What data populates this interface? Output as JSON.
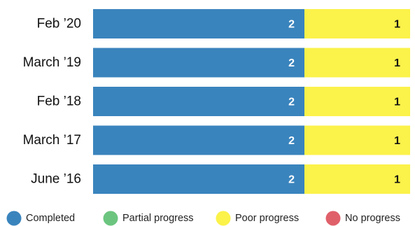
{
  "chart_data": {
    "type": "bar",
    "orientation": "horizontal",
    "stacked": true,
    "normalized": true,
    "categories": [
      "Feb ’20",
      "March ’19",
      "Feb ’18",
      "March ’17",
      "June ’16"
    ],
    "series": [
      {
        "name": "Completed",
        "color": "#3a84bd",
        "label_color": "#ffffff",
        "values": [
          2,
          2,
          2,
          2,
          2
        ]
      },
      {
        "name": "Partial progress",
        "color": "#6cc57f",
        "label_color": "#111111",
        "values": [
          0,
          0,
          0,
          0,
          0
        ]
      },
      {
        "name": "Poor progress",
        "color": "#fbf24a",
        "label_color": "#111111",
        "values": [
          1,
          1,
          1,
          1,
          1
        ]
      },
      {
        "name": "No progress",
        "color": "#e0606a",
        "label_color": "#ffffff",
        "values": [
          0,
          0,
          0,
          0,
          0
        ]
      }
    ],
    "title": "",
    "xlabel": "",
    "ylabel": "",
    "grid": false,
    "legend_position": "bottom"
  }
}
